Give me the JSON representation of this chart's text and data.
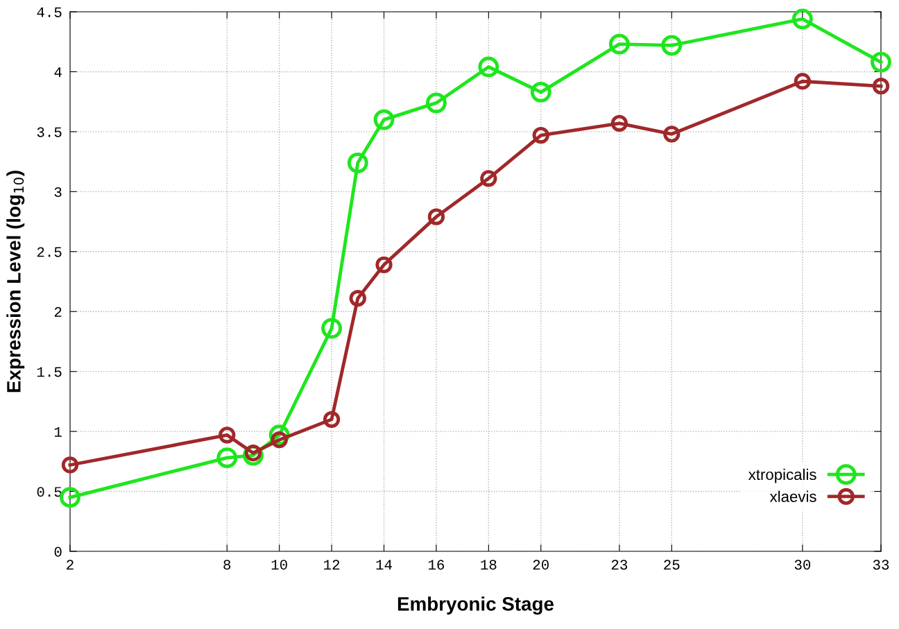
{
  "chart_data": {
    "type": "line",
    "xlabel": "Embryonic Stage",
    "ylabel": "Expression Level (log$_{10}$)",
    "x": [
      2,
      8,
      9,
      10,
      12,
      13,
      14,
      16,
      18,
      20,
      23,
      25,
      30,
      33
    ],
    "series": [
      {
        "name": "xtropicalis",
        "color": "#1ee61e",
        "values": [
          0.45,
          0.78,
          0.8,
          0.97,
          1.86,
          3.24,
          3.6,
          3.74,
          4.04,
          3.83,
          4.23,
          4.22,
          4.44,
          4.08
        ]
      },
      {
        "name": "xlaevis",
        "color": "#a0282a",
        "values": [
          0.72,
          0.97,
          0.82,
          0.93,
          1.1,
          2.11,
          2.39,
          2.79,
          3.11,
          3.47,
          3.57,
          3.48,
          3.92,
          3.88
        ]
      }
    ],
    "xlim": [
      2,
      33
    ],
    "xticks": [
      2,
      8,
      10,
      12,
      14,
      16,
      18,
      20,
      23,
      25,
      30,
      33
    ],
    "ylim": [
      0,
      4.5
    ],
    "yticks": [
      0,
      0.5,
      1,
      1.5,
      2,
      2.5,
      3,
      3.5,
      4,
      4.5
    ],
    "grid": true,
    "legend": "bottom right",
    "marker": "circle",
    "line_style": "solid"
  }
}
